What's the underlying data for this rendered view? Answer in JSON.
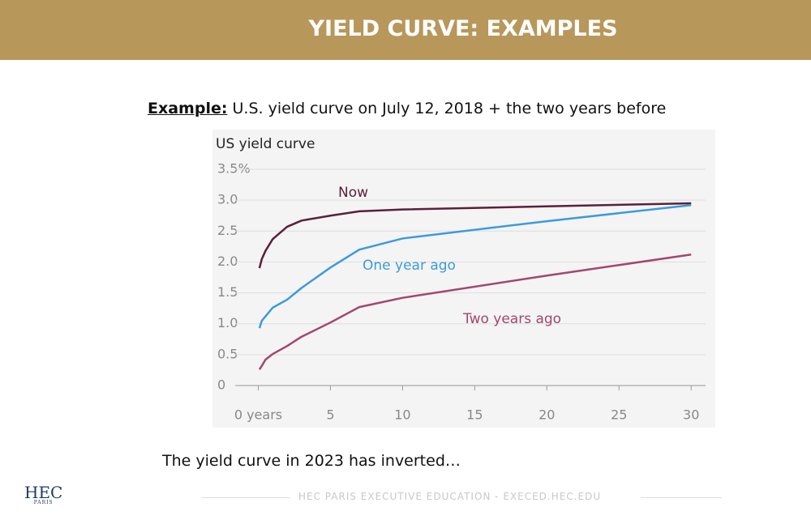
{
  "slide": {
    "title": "YIELD CURVE: EXAMPLES",
    "example_label": "Example:",
    "example_text": "U.S. yield curve on July 12, 2018 + the two years before",
    "note": "The yield curve in 2023 has inverted…",
    "footer": "HEC PARIS EXECUTIVE EDUCATION - EXECED.HEC.EDU",
    "logo": "HEC",
    "logo_sub": "PARIS"
  },
  "chart_data": {
    "type": "line",
    "title": "US yield curve",
    "x": [
      0.08,
      0.25,
      0.5,
      1,
      2,
      3,
      5,
      7,
      10,
      20,
      30
    ],
    "series": [
      {
        "name": "Now",
        "color": "#5c1f3a",
        "values": [
          1.9,
          2.05,
          2.18,
          2.37,
          2.57,
          2.67,
          2.75,
          2.82,
          2.85,
          2.9,
          2.95
        ]
      },
      {
        "name": "One year ago",
        "color": "#3c9bdb",
        "values": [
          0.93,
          1.05,
          1.12,
          1.26,
          1.39,
          1.58,
          1.91,
          2.2,
          2.38,
          2.66,
          2.92
        ]
      },
      {
        "name": "Two years ago",
        "color": "#a3466f",
        "values": [
          0.26,
          0.32,
          0.42,
          0.51,
          0.64,
          0.79,
          1.02,
          1.27,
          1.42,
          1.78,
          2.12
        ]
      }
    ],
    "xlim": [
      -1.6,
      31
    ],
    "ylim": [
      0,
      3.5
    ],
    "xticks": [
      {
        "value": 0,
        "label": "0 years"
      },
      5,
      10,
      15,
      20,
      25,
      30
    ],
    "yticks": [
      0,
      0.5,
      {
        "value": 1,
        "label": "1.0"
      },
      1.5,
      {
        "value": 2,
        "label": "2.0"
      },
      2.5,
      {
        "value": 3,
        "label": "3.0"
      },
      {
        "value": 3.5,
        "label": "3.5%"
      }
    ],
    "grid": true
  }
}
